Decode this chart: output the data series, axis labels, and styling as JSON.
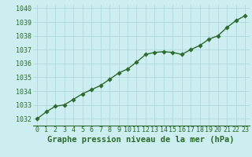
{
  "x": [
    0,
    1,
    2,
    3,
    4,
    5,
    6,
    7,
    8,
    9,
    10,
    11,
    12,
    13,
    14,
    15,
    16,
    17,
    18,
    19,
    20,
    21,
    22,
    23
  ],
  "y": [
    1032.0,
    1032.5,
    1032.9,
    1033.0,
    1033.4,
    1033.8,
    1034.1,
    1034.4,
    1034.85,
    1035.3,
    1035.6,
    1036.1,
    1036.65,
    1036.8,
    1036.85,
    1036.8,
    1036.65,
    1037.0,
    1037.3,
    1037.75,
    1038.0,
    1038.6,
    1039.1,
    1039.45
  ],
  "line_color": "#2d6a2d",
  "marker_color": "#2d6a2d",
  "bg_color": "#cceef0",
  "grid_color": "#aad4d8",
  "xlabel": "Graphe pression niveau de la mer (hPa)",
  "ylim": [
    1031.5,
    1040.25
  ],
  "xlim": [
    -0.5,
    23.5
  ],
  "yticks": [
    1032,
    1033,
    1034,
    1035,
    1036,
    1037,
    1038,
    1039,
    1040
  ],
  "xticks": [
    0,
    1,
    2,
    3,
    4,
    5,
    6,
    7,
    8,
    9,
    10,
    11,
    12,
    13,
    14,
    15,
    16,
    17,
    18,
    19,
    20,
    21,
    22,
    23
  ],
  "xlabel_fontsize": 7.5,
  "tick_fontsize": 6,
  "line_width": 1.0,
  "marker_size": 2.8
}
